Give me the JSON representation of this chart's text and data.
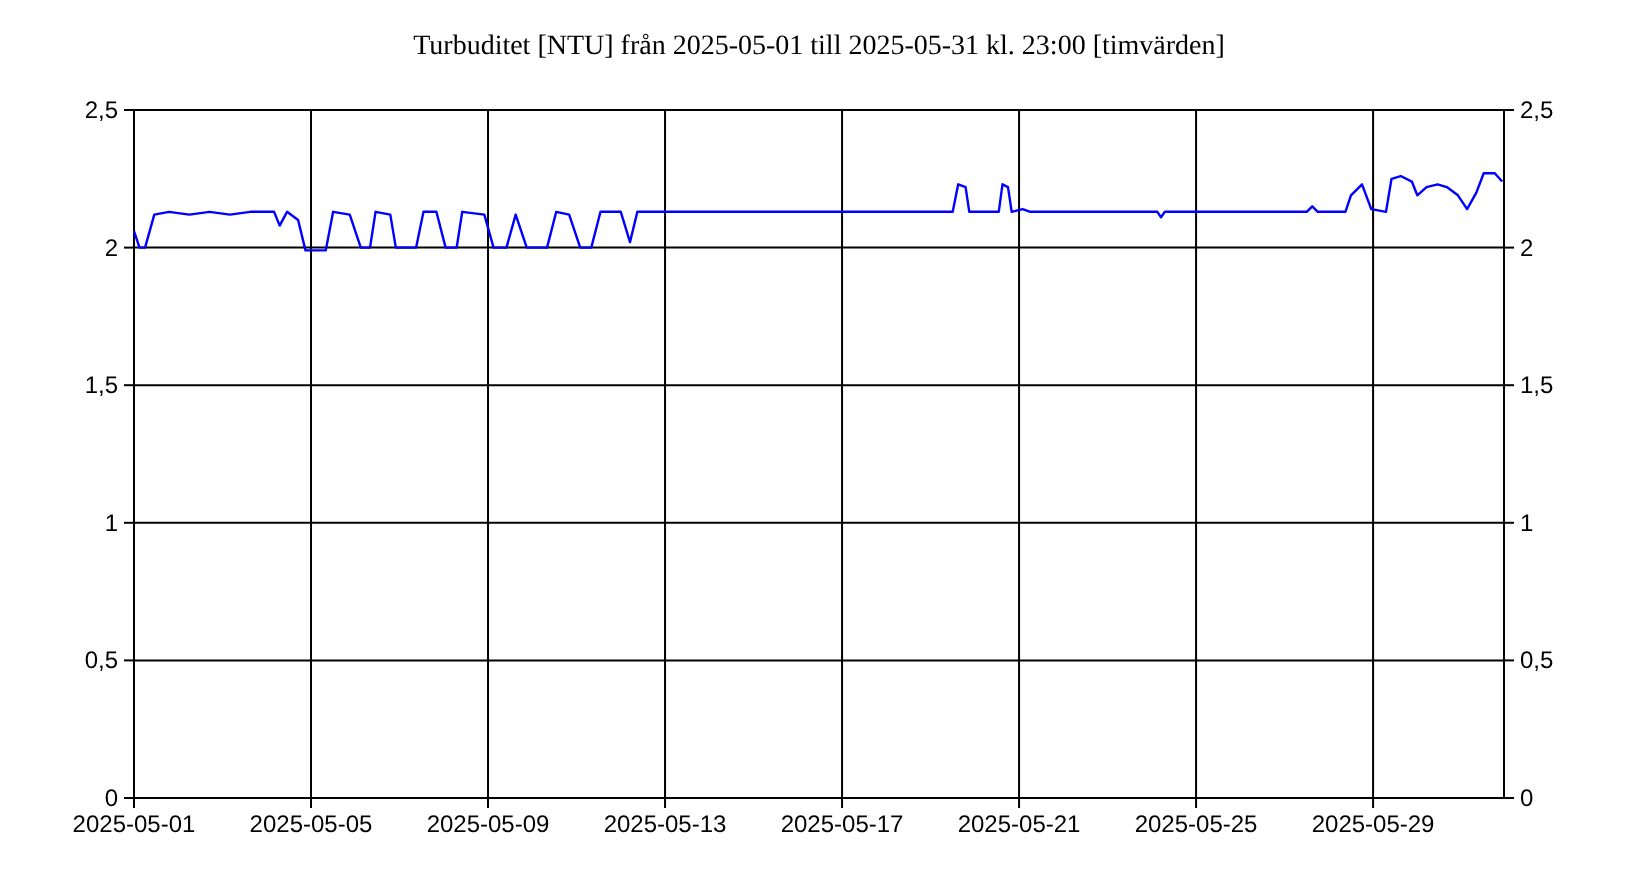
{
  "chart_data": {
    "type": "line",
    "title": "Turbuditet [NTU] från 2025-05-01 till 2025-05-31 kl. 23:00 [timvärden]",
    "x": [
      "2025-05-01T00:00",
      "2025-05-01T03:00",
      "2025-05-01T06:00",
      "2025-05-01T11:00",
      "2025-05-01T19:00",
      "2025-05-02T06:00",
      "2025-05-02T17:00",
      "2025-05-03T04:00",
      "2025-05-03T15:00",
      "2025-05-04T04:00",
      "2025-05-04T07:00",
      "2025-05-04T11:00",
      "2025-05-04T17:00",
      "2025-05-04T21:00",
      "2025-05-05T08:00",
      "2025-05-05T12:00",
      "2025-05-05T21:00",
      "2025-05-06T03:00",
      "2025-05-06T08:00",
      "2025-05-06T11:00",
      "2025-05-06T19:00",
      "2025-05-06T22:00",
      "2025-05-07T09:00",
      "2025-05-07T13:00",
      "2025-05-07T20:00",
      "2025-05-08T01:00",
      "2025-05-08T07:00",
      "2025-05-08T10:00",
      "2025-05-08T22:00",
      "2025-05-09T03:00",
      "2025-05-09T10:00",
      "2025-05-09T15:00",
      "2025-05-09T21:00",
      "2025-05-10T08:00",
      "2025-05-10T13:00",
      "2025-05-10T20:00",
      "2025-05-11T02:00",
      "2025-05-11T08:00",
      "2025-05-11T13:00",
      "2025-05-12T00:00",
      "2025-05-12T05:00",
      "2025-05-12T09:00",
      "2025-05-19T12:00",
      "2025-05-19T15:00",
      "2025-05-19T19:00",
      "2025-05-19T21:00",
      "2025-05-20T13:00",
      "2025-05-20T15:00",
      "2025-05-20T18:00",
      "2025-05-20T20:00",
      "2025-05-21T02:00",
      "2025-05-21T06:00",
      "2025-05-24T03:00",
      "2025-05-24T05:00",
      "2025-05-24T07:00",
      "2025-05-27T12:00",
      "2025-05-27T15:00",
      "2025-05-27T18:00",
      "2025-05-28T09:00",
      "2025-05-28T12:00",
      "2025-05-28T18:00",
      "2025-05-28T23:00",
      "2025-05-29T07:00",
      "2025-05-29T10:00",
      "2025-05-29T15:00",
      "2025-05-29T21:00",
      "2025-05-30T00:00",
      "2025-05-30T05:00",
      "2025-05-30T11:00",
      "2025-05-30T16:00",
      "2025-05-30T22:00",
      "2025-05-31T03:00",
      "2025-05-31T08:00",
      "2025-05-31T12:00",
      "2025-05-31T18:00",
      "2025-05-31T22:00"
    ],
    "series": [
      {
        "color": "#0000ff",
        "values": [
          2.06,
          2.0,
          2.0,
          2.12,
          2.13,
          2.12,
          2.13,
          2.12,
          2.13,
          2.13,
          2.08,
          2.13,
          2.1,
          1.99,
          1.99,
          2.13,
          2.12,
          2.0,
          2.0,
          2.13,
          2.12,
          2.0,
          2.0,
          2.13,
          2.13,
          2.0,
          2.0,
          2.13,
          2.12,
          2.0,
          2.0,
          2.12,
          2.0,
          2.0,
          2.13,
          2.12,
          2.0,
          2.0,
          2.13,
          2.13,
          2.02,
          2.13,
          2.13,
          2.23,
          2.22,
          2.13,
          2.13,
          2.23,
          2.22,
          2.13,
          2.14,
          2.13,
          2.13,
          2.11,
          2.13,
          2.13,
          2.15,
          2.13,
          2.13,
          2.19,
          2.23,
          2.14,
          2.13,
          2.25,
          2.26,
          2.24,
          2.19,
          2.22,
          2.23,
          2.22,
          2.19,
          2.14,
          2.2,
          2.27,
          2.27,
          2.24
        ]
      }
    ],
    "xlim": [
      "2025-05-01T00:00",
      "2025-05-31T23:00"
    ],
    "xticks": [
      "2025-05-01",
      "2025-05-05",
      "2025-05-09",
      "2025-05-13",
      "2025-05-17",
      "2025-05-21",
      "2025-05-25",
      "2025-05-29"
    ],
    "ylim": [
      0,
      2.5
    ],
    "yticks": [
      0,
      {
        "value": 0.5,
        "label": "0,5"
      },
      1,
      {
        "value": 1.5,
        "label": "1,5"
      },
      2,
      {
        "value": 2.5,
        "label": "2,5"
      }
    ],
    "y2lim": [
      0,
      2.5
    ],
    "y2ticks": [
      0,
      {
        "value": 0.5,
        "label": "0,5"
      },
      1,
      {
        "value": 1.5,
        "label": "1,5"
      },
      2,
      {
        "value": 2.5,
        "label": "2,5"
      }
    ],
    "grid": true,
    "marker": "none",
    "line_style": "solid"
  }
}
